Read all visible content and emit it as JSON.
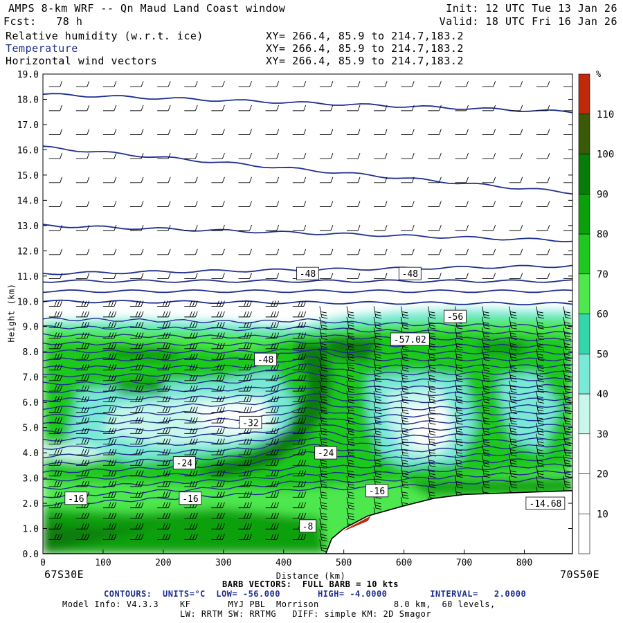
{
  "header": {
    "title": "AMPS 8-km WRF -- Qn Maud Land Coast window",
    "fcst": "Fcst:   78 h",
    "init": "Init: 12 UTC Tue 13 Jan 26",
    "valid": "Valid: 18 UTC Fri 16 Jan 26",
    "fields": [
      {
        "label": "Relative humidity (w.r.t. ice)",
        "xy": "XY= 266.4, 85.9 to 214.7,183.2",
        "color": "#000000"
      },
      {
        "label": "Temperature",
        "xy": "XY= 266.4, 85.9 to 214.7,183.2",
        "color": "#1f2f8f"
      },
      {
        "label": "Horizontal wind vectors",
        "xy": "XY= 266.4, 85.9 to 214.7,183.2",
        "color": "#000000"
      }
    ]
  },
  "chart_data": {
    "type": "heatmap",
    "xlabel": "Distance (km)",
    "ylabel": "Height (km)",
    "xlim": [
      0,
      880
    ],
    "ylim": [
      0,
      19
    ],
    "x_ticks": [
      0,
      100,
      200,
      300,
      400,
      500,
      600,
      700,
      800
    ],
    "y_ticks": [
      0.0,
      1.0,
      2.0,
      3.0,
      4.0,
      5.0,
      6.0,
      7.0,
      8.0,
      9.0,
      10.0,
      11.0,
      12.0,
      13.0,
      14.0,
      15.0,
      16.0,
      17.0,
      18.0,
      19.0
    ],
    "endpoints": {
      "left": "67S30E",
      "right": "70S50E"
    },
    "colorbar": {
      "unit": "%",
      "levels": [
        10,
        20,
        30,
        40,
        50,
        60,
        70,
        80,
        90,
        100,
        110
      ],
      "colors": [
        "#ffffff",
        "#ffffff",
        "#ffffff",
        "#c8f7ec",
        "#79e8d6",
        "#33d6a8",
        "#4ee84e",
        "#1ec81e",
        "#0aa00a",
        "#087c08",
        "#3a5a0a",
        "#c02a0a"
      ]
    },
    "temperature_contours": {
      "units": "°C",
      "low": -56.0,
      "high": -4.0,
      "interval": 2.0,
      "labels": [
        {
          "text": "-48",
          "x": 440,
          "y": 11.1
        },
        {
          "text": "-48",
          "x": 610,
          "y": 11.1
        },
        {
          "text": "-56",
          "x": 685,
          "y": 9.4
        },
        {
          "text": "-57.02",
          "x": 610,
          "y": 8.5
        },
        {
          "text": "-48",
          "x": 370,
          "y": 7.7
        },
        {
          "text": "-32",
          "x": 345,
          "y": 5.2
        },
        {
          "text": "-24",
          "x": 470,
          "y": 4.0
        },
        {
          "text": "-24",
          "x": 235,
          "y": 3.6
        },
        {
          "text": "-16",
          "x": 55,
          "y": 2.2
        },
        {
          "text": "-16",
          "x": 245,
          "y": 2.2
        },
        {
          "text": "-16",
          "x": 555,
          "y": 2.5
        },
        {
          "text": "-8",
          "x": 440,
          "y": 1.1
        },
        {
          "text": "-14.68",
          "x": 835,
          "y": 2.0
        }
      ],
      "levels_upper": [
        {
          "y0": 18.2,
          "y1": 17.5
        },
        {
          "y0": 16.1,
          "y1": 14.3
        },
        {
          "y0": 13.0,
          "y1": 12.4
        },
        {
          "y0": 11.1,
          "y1": 11.4
        },
        {
          "y0": 10.8,
          "y1": 10.8
        },
        {
          "y0": 10.4,
          "y1": 10.4
        },
        {
          "y0": 10.0,
          "y1": 9.9
        }
      ]
    },
    "terrain_profile": [
      {
        "x": 0,
        "y": 0.0
      },
      {
        "x": 470,
        "y": 0.0
      },
      {
        "x": 480,
        "y": 0.6
      },
      {
        "x": 500,
        "y": 1.0
      },
      {
        "x": 540,
        "y": 1.5
      },
      {
        "x": 600,
        "y": 1.9
      },
      {
        "x": 650,
        "y": 2.2
      },
      {
        "x": 700,
        "y": 2.35
      },
      {
        "x": 760,
        "y": 2.4
      },
      {
        "x": 880,
        "y": 2.5
      }
    ],
    "barb_note": "BARB VECTORS:  FULL BARB = 10 kts"
  },
  "footer": {
    "contours_line": "CONTOURS:  UNITS=°C  LOW= -56.000       HIGH= -4.0000        INTERVAL=   2.0000",
    "model_info": "Model Info: V4.3.3    KF       MYJ PBL  Morrison              8.0 km,  60 levels,",
    "model_info2": "LW: RRTM SW: RRTMG   DIFF: simple KM: 2D Smagor"
  }
}
